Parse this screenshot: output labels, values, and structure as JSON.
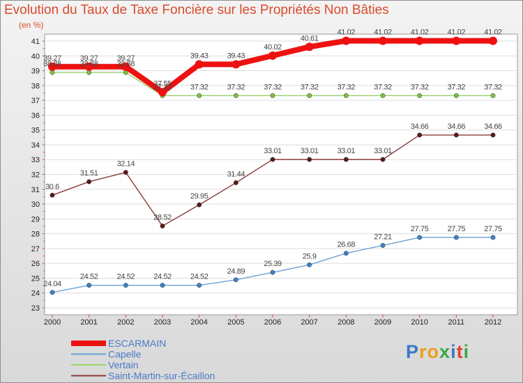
{
  "title": "Evolution du Taux de Taxe Foncière sur les Propriétés Non Bâties",
  "unit": "(en %)",
  "logo": {
    "text": "Proxiti",
    "colors": [
      "#3a78c9",
      "#e8a11a",
      "#e8a11a",
      "#39a845",
      "#3a78c9",
      "#d8462c",
      "#39a845"
    ]
  },
  "chart_data": {
    "type": "line",
    "title": "Evolution du Taux de Taxe Foncière sur les Propriétés Non Bâties",
    "ylabel": "(en %)",
    "xlabel": "",
    "x": [
      "2000",
      "2001",
      "2002",
      "2003",
      "2004",
      "2005",
      "2006",
      "2007",
      "2008",
      "2009",
      "2010",
      "2011",
      "2012"
    ],
    "ylim": [
      23,
      41
    ],
    "yticks": [
      "23",
      "24",
      "25",
      "26",
      "27",
      "28",
      "29",
      "30",
      "31",
      "32",
      "33",
      "34",
      "35",
      "36",
      "37",
      "38",
      "39",
      "40",
      "41"
    ],
    "grid": "horizontal",
    "legend_position": "bottom-left",
    "series": [
      {
        "name": "ESCARMAIN",
        "color": "#ee1111",
        "values": [
          39.27,
          39.27,
          39.27,
          37.55,
          39.43,
          39.43,
          40.02,
          40.61,
          41.02,
          41.02,
          41.02,
          41.02,
          41.02
        ],
        "labels": [
          "39.27",
          "39.27",
          "39.27",
          "37.55",
          "39.43",
          "39.43",
          "40.02",
          "40.61",
          "41.02",
          "41.02",
          "41.02",
          "41.02",
          "41.02"
        ]
      },
      {
        "name": "Capelle",
        "color": "#6aa1d4",
        "values": [
          24.04,
          24.52,
          24.52,
          24.52,
          24.52,
          24.89,
          25.39,
          25.9,
          26.68,
          27.21,
          27.75,
          27.75,
          27.75
        ],
        "labels": [
          "24.04",
          "24.52",
          "24.52",
          "24.52",
          "24.52",
          "24.89",
          "25.39",
          "25.9",
          "26.68",
          "27.21",
          "27.75",
          "27.75",
          "27.75"
        ]
      },
      {
        "name": "Vertain",
        "color": "#9ad26a",
        "values": [
          38.88,
          38.88,
          38.88,
          37.32,
          37.32,
          37.32,
          37.32,
          37.32,
          37.32,
          37.32,
          37.32,
          37.32,
          37.32
        ],
        "labels": [
          "38.88",
          "38.88",
          "38.88",
          "37.32",
          "37.32",
          "37.32",
          "37.32",
          "37.32",
          "37.32",
          "37.32",
          "37.32",
          "37.32",
          "37.32"
        ]
      },
      {
        "name": "Saint-Martin-sur-Écaillon",
        "color": "#8b3a3a",
        "values": [
          30.6,
          31.51,
          32.14,
          28.52,
          29.95,
          31.44,
          33.01,
          33.01,
          33.01,
          33.01,
          34.66,
          34.66,
          34.66
        ],
        "labels": [
          "30.6",
          "31.51",
          "32.14",
          "28.52",
          "29.95",
          "31.44",
          "33.01",
          "33.01",
          "33.01",
          "33.01",
          "34.66",
          "34.66",
          "34.66"
        ]
      }
    ]
  }
}
